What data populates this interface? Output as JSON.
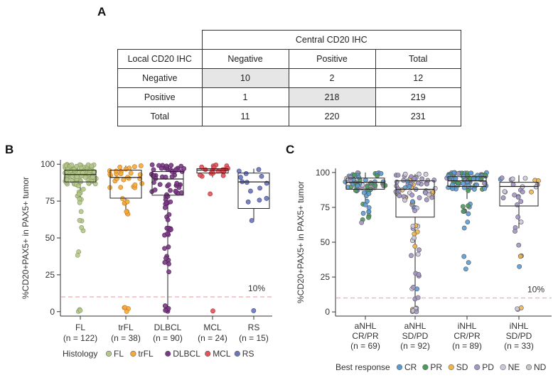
{
  "panel_a": {
    "letter": "A",
    "table": {
      "group_header": "Central CD20 IHC",
      "row_header": "Local CD20 IHC",
      "columns": [
        "Negative",
        "Positive",
        "Total"
      ],
      "rows": [
        {
          "label": "Negative",
          "values": [
            "10",
            "2",
            "12"
          ]
        },
        {
          "label": "Positive",
          "values": [
            "1",
            "218",
            "219"
          ]
        },
        {
          "label": "Total",
          "values": [
            "11",
            "220",
            "231"
          ]
        }
      ]
    }
  },
  "panel_b": {
    "letter": "B"
  },
  "panel_c": {
    "letter": "C"
  },
  "chart_data": [
    {
      "type": "box-swarm",
      "ylabel": "%CD20+PAX5+ in PAX5+ tumor",
      "ylim": [
        -3,
        103
      ],
      "yticks": [
        0,
        25,
        50,
        75,
        100
      ],
      "threshold": {
        "value": 10,
        "label": "10%",
        "color": "#f4a6b2"
      },
      "categories": [
        {
          "label": "FL",
          "n": "(n = 122)",
          "color": "#b5c68e",
          "edge": "#879a5e",
          "q1": 88,
          "median": 93,
          "q3": 96,
          "whisker_low": 77,
          "whisker_high": 100
        },
        {
          "label": "trFL",
          "n": "(n = 38)",
          "color": "#f5a83e",
          "edge": "#c27a14",
          "q1": 77,
          "median": 91,
          "q3": 96,
          "whisker_low": 66,
          "whisker_high": 99
        },
        {
          "label": "DLBCL",
          "n": "(n = 90)",
          "color": "#7b3a85",
          "edge": "#4d1f55",
          "q1": 79,
          "median": 90,
          "q3": 95,
          "whisker_low": 0,
          "whisker_high": 100
        },
        {
          "label": "MCL",
          "n": "(n = 24)",
          "color": "#e0545c",
          "edge": "#a82d35",
          "q1": 94,
          "median": 96,
          "q3": 97,
          "whisker_low": 91,
          "whisker_high": 99
        },
        {
          "label": "RS",
          "n": "(n = 15)",
          "color": "#6c75b8",
          "edge": "#3e478a",
          "q1": 70,
          "median": 88,
          "q3": 94,
          "whisker_low": 61,
          "whisker_high": 97
        }
      ],
      "legend": {
        "title": "Histology",
        "items": [
          {
            "label": "FL",
            "color": "#b5c68e"
          },
          {
            "label": "trFL",
            "color": "#f5a83e"
          },
          {
            "label": "DLBCL",
            "color": "#7b3a85"
          },
          {
            "label": "MCL",
            "color": "#e0545c"
          },
          {
            "label": "RS",
            "color": "#6c75b8"
          }
        ]
      }
    },
    {
      "type": "box-swarm",
      "ylabel": "%CD20+PAX5+ in PAX5+ tumor",
      "ylim": [
        -3,
        103
      ],
      "yticks": [
        0,
        25,
        50,
        75,
        100
      ],
      "threshold": {
        "value": 10,
        "label": "10%",
        "color": "#f4a6b2"
      },
      "categories": [
        {
          "label_1": "aNHL",
          "label_2": "CR/PR",
          "n": "(n = 69)",
          "q1": 88,
          "median": 93,
          "q3": 96,
          "whisker_low": 78,
          "whisker_high": 100
        },
        {
          "label_1": "aNHL",
          "label_2": "SD/PD",
          "n": "(n = 92)",
          "q1": 68,
          "median": 88,
          "q3": 94,
          "whisker_low": 0,
          "whisker_high": 99
        },
        {
          "label_1": "iNHL",
          "label_2": "CR/PR",
          "n": "(n = 89)",
          "q1": 90,
          "median": 94,
          "q3": 97,
          "whisker_low": 81,
          "whisker_high": 100
        },
        {
          "label_1": "iNHL",
          "label_2": "SD/PD",
          "n": "(n = 33)",
          "q1": 76,
          "median": 90,
          "q3": 93,
          "whisker_low": 60,
          "whisker_high": 98
        }
      ],
      "legend": {
        "title": "Best response",
        "items": [
          {
            "label": "CR",
            "color": "#5b9bd5"
          },
          {
            "label": "PR",
            "color": "#4c9a5a"
          },
          {
            "label": "SD",
            "color": "#f2b54a"
          },
          {
            "label": "PD",
            "color": "#a395c4"
          },
          {
            "label": "NE",
            "color": "#cdc8dc"
          },
          {
            "label": "ND",
            "color": "#c4c4c4"
          }
        ]
      }
    }
  ]
}
